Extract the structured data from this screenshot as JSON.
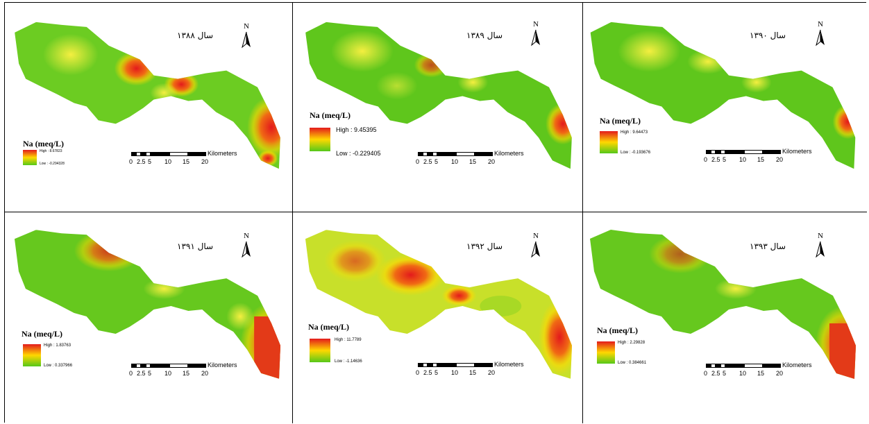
{
  "maps": [
    {
      "year_label": "سال ۱۳۸۸",
      "legend_title": "Na (meq/L)",
      "high_label": "High : 8.67823",
      "low_label": "Low : -0.294328",
      "scheme": "y1388"
    },
    {
      "year_label": "سال ۱۳۸۹",
      "legend_title": "Na (meq/L)",
      "high_label": "High : 9.45395",
      "low_label": "Low : -0.229405",
      "scheme": "y1389"
    },
    {
      "year_label": "سال ۱۳۹۰",
      "legend_title": "Na (meq/L)",
      "high_label": "High : 9.64473",
      "low_label": "Low : -0.193676",
      "scheme": "y1390"
    },
    {
      "year_label": "سال ۱۳۹۱",
      "legend_title": "Na (meq/L)",
      "high_label": "High : 1.83763",
      "low_label": "Low : 0.337966",
      "scheme": "y1391"
    },
    {
      "year_label": "سال ۱۳۹۲",
      "legend_title": "Na (meq/L)",
      "high_label": "High : 11.7789",
      "low_label": "Low : -1.14636",
      "scheme": "y1392"
    },
    {
      "year_label": "سال ۱۳۹۳",
      "legend_title": "Na (meq/L)",
      "high_label": "High : 2.29828",
      "low_label": "Low : 0.384661",
      "scheme": "y1393"
    }
  ],
  "north_letter": "N",
  "scale": {
    "unit": "Kilometers",
    "ticks": [
      "0",
      "2.5",
      "5",
      "10",
      "15",
      "20"
    ]
  },
  "colors": {
    "high": "#e31a1c",
    "mid": "#ffd800",
    "low": "#55c81a",
    "frame": "#000000"
  }
}
